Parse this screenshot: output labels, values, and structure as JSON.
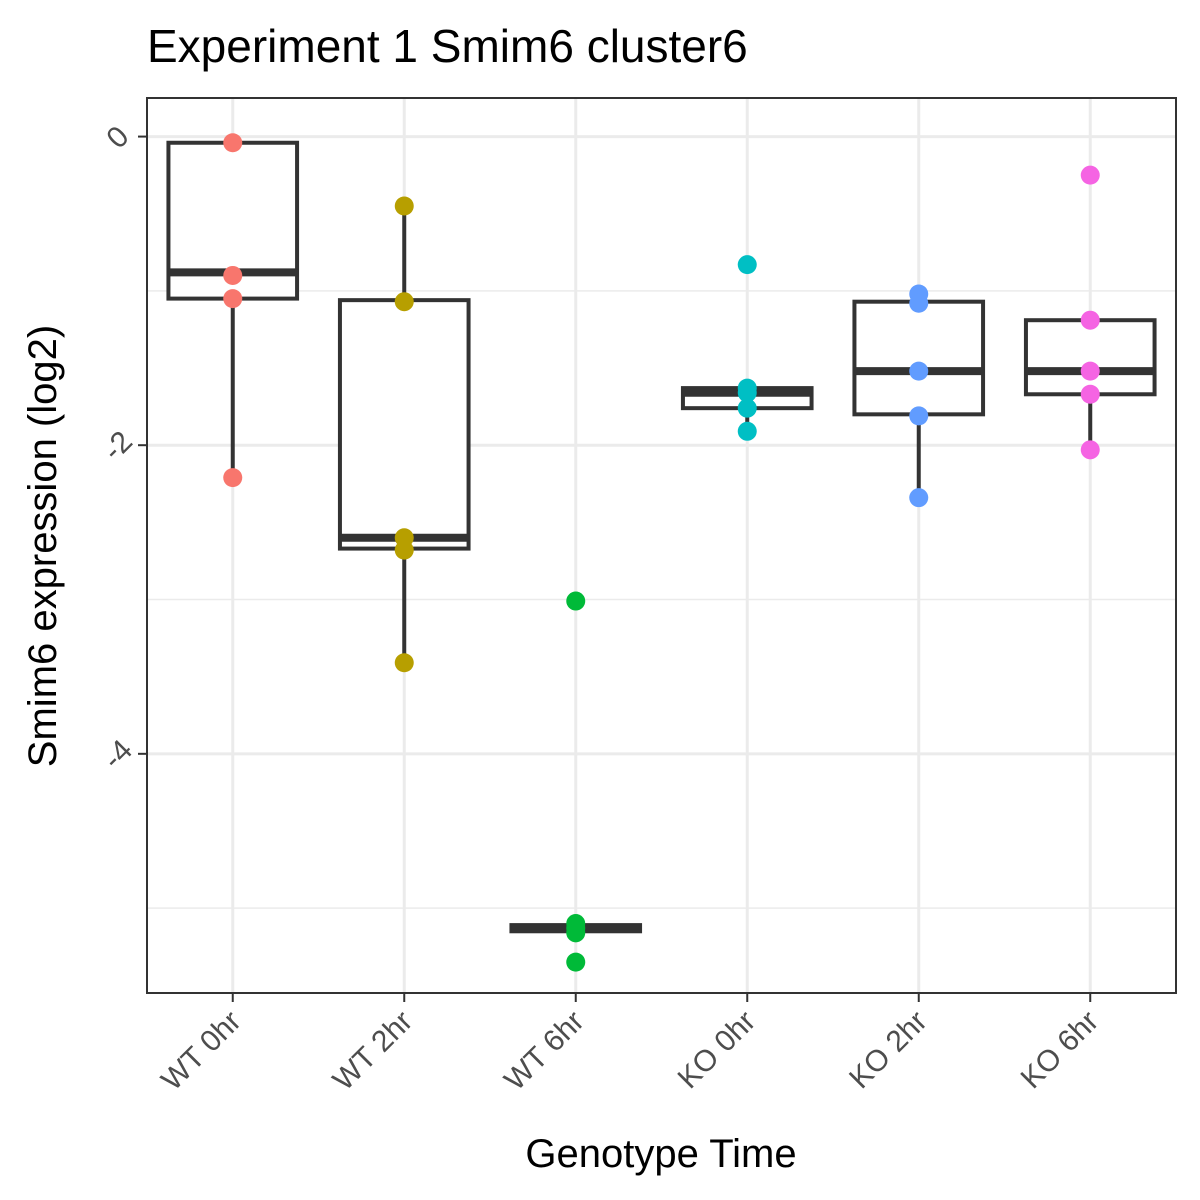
{
  "chart_data": {
    "type": "box",
    "title": "Experiment 1 Smim6 cluster6",
    "xlabel": "Genotype Time",
    "ylabel": "Smim6 expression (log2)",
    "categories": [
      "WT 0hr",
      "WT 2hr",
      "WT 6hr",
      "KO 0hr",
      "KO 2hr",
      "KO 6hr"
    ],
    "colors": [
      "#F8766D",
      "#B79F00",
      "#00BA38",
      "#00BFC4",
      "#619CFF",
      "#F564E3"
    ],
    "ylim": [
      -5.55,
      0.25
    ],
    "yticks": [
      0,
      -2,
      -4
    ],
    "ytick_labels": [
      "0",
      "-2",
      "-4"
    ],
    "grid": true,
    "boxes": [
      {
        "category": "WT 0hr",
        "min": -2.21,
        "q1": -1.05,
        "median": -0.88,
        "q3": -0.04,
        "max": -0.04
      },
      {
        "category": "WT 2hr",
        "min": -3.41,
        "q1": -2.67,
        "median": -2.6,
        "q3": -1.06,
        "max": -0.45
      },
      {
        "category": "WT 6hr",
        "min": -5.15,
        "q1": -5.15,
        "median": -5.13,
        "q3": -5.11,
        "max": -5.11
      },
      {
        "category": "KO 0hr",
        "min": -1.9,
        "q1": -1.76,
        "median": -1.66,
        "q3": -1.63,
        "max": -1.63
      },
      {
        "category": "KO 2hr",
        "min": -2.34,
        "q1": -1.8,
        "median": -1.52,
        "q3": -1.07,
        "max": -1.02
      },
      {
        "category": "KO 6hr",
        "min": -2.03,
        "q1": -1.67,
        "median": -1.52,
        "q3": -1.19,
        "max": -1.19
      }
    ],
    "points": [
      {
        "category": "WT 0hr",
        "values": [
          -0.04,
          -0.9,
          -1.05,
          -2.21
        ]
      },
      {
        "category": "WT 2hr",
        "values": [
          -0.45,
          -1.07,
          -2.6,
          -2.68,
          -3.41
        ]
      },
      {
        "category": "WT 6hr",
        "values": [
          -3.01,
          -5.1,
          -5.13,
          -5.16,
          -5.35
        ]
      },
      {
        "category": "KO 0hr",
        "values": [
          -0.83,
          -1.63,
          -1.66,
          -1.76,
          -1.91
        ]
      },
      {
        "category": "KO 2hr",
        "values": [
          -1.02,
          -1.08,
          -1.52,
          -1.81,
          -2.34
        ]
      },
      {
        "category": "KO 6hr",
        "values": [
          -0.25,
          -1.19,
          -1.52,
          -1.67,
          -2.03
        ]
      }
    ]
  }
}
